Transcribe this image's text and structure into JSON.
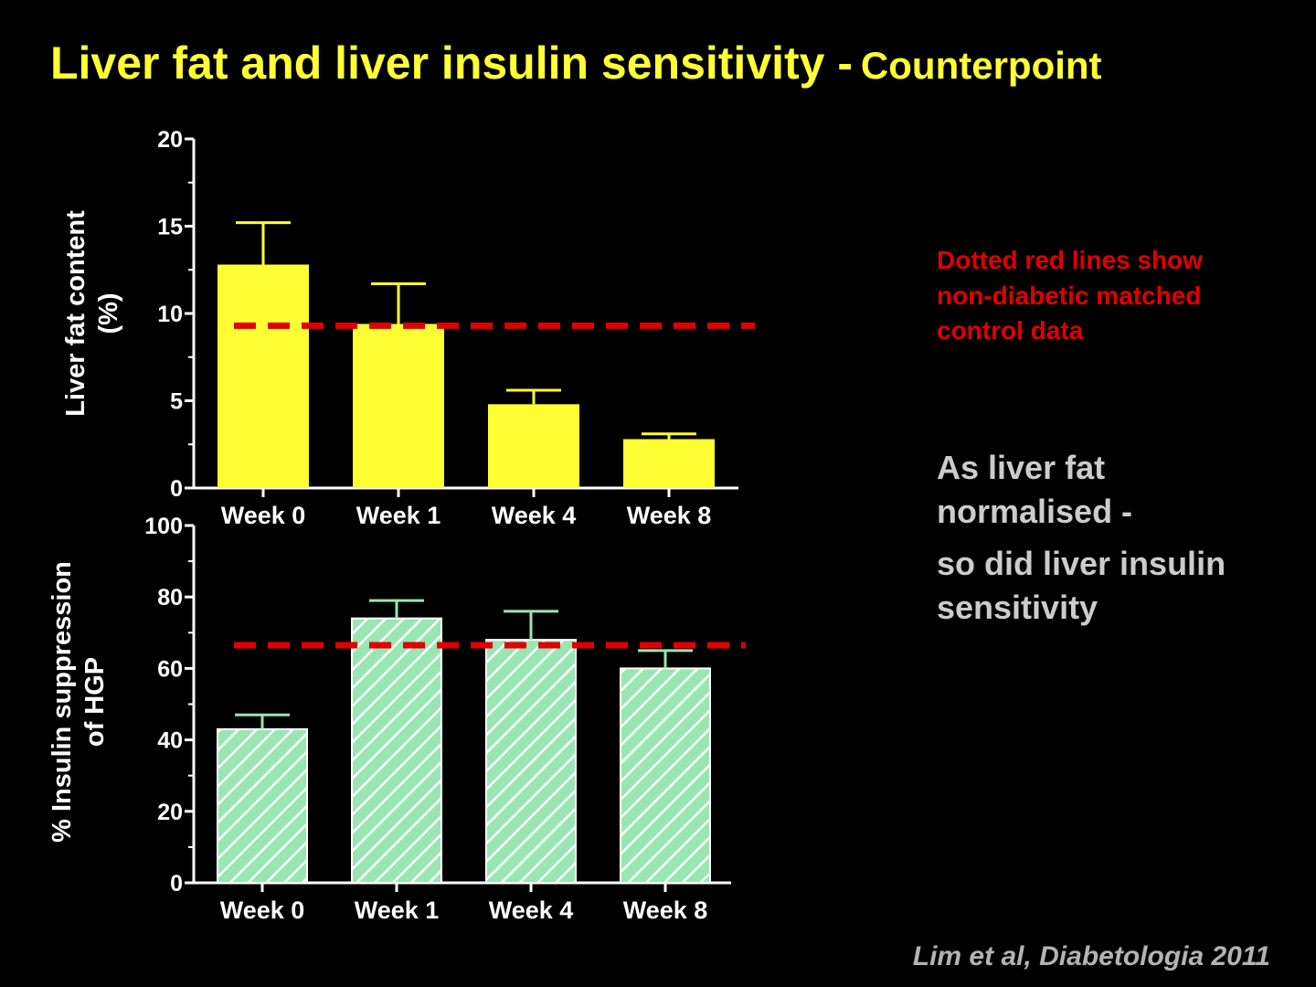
{
  "slide": {
    "title": "Liver fat and liver insulin sensitivity -",
    "subtitle": "Counterpoint",
    "note_red": "Dotted red lines show non-diabetic matched control data",
    "note_grey_1": "As liver fat normalised -",
    "note_grey_2": "so did liver insulin sensitivity",
    "citation": "Lim et al, Diabetologia 2011"
  },
  "colors": {
    "background": "#000000",
    "title": "#ffff33",
    "bar_top": "#ffff33",
    "bar_bottom": "#99e6b3",
    "hatch": "#ffffff",
    "control_line": "#e00000",
    "axis_text": "#ffffff"
  },
  "chart_data": [
    {
      "type": "bar",
      "categories": [
        "Week 0",
        "Week 1",
        "Week 4",
        "Week 8"
      ],
      "values": [
        12.8,
        9.4,
        4.8,
        2.8
      ],
      "errors": [
        2.4,
        2.3,
        0.8,
        0.3
      ],
      "control_value": 9.3,
      "ylabel_line1": "Liver fat content",
      "ylabel_line2": "(%)",
      "ylim": [
        0,
        20
      ],
      "yticks": [
        "0",
        "5",
        "10",
        "15",
        "20"
      ],
      "fill": "solid",
      "grid": false
    },
    {
      "type": "bar",
      "categories": [
        "Week 0",
        "Week 1",
        "Week 4",
        "Week 8"
      ],
      "values": [
        43,
        74,
        68,
        60
      ],
      "errors": [
        4,
        5,
        8,
        5
      ],
      "control_value": 66.5,
      "ylabel_line1": "% Insulin suppression",
      "ylabel_line2": "of HGP",
      "ylim": [
        0,
        100
      ],
      "yticks": [
        "0",
        "20",
        "40",
        "60",
        "80",
        "100"
      ],
      "fill": "hatched",
      "grid": false
    }
  ]
}
